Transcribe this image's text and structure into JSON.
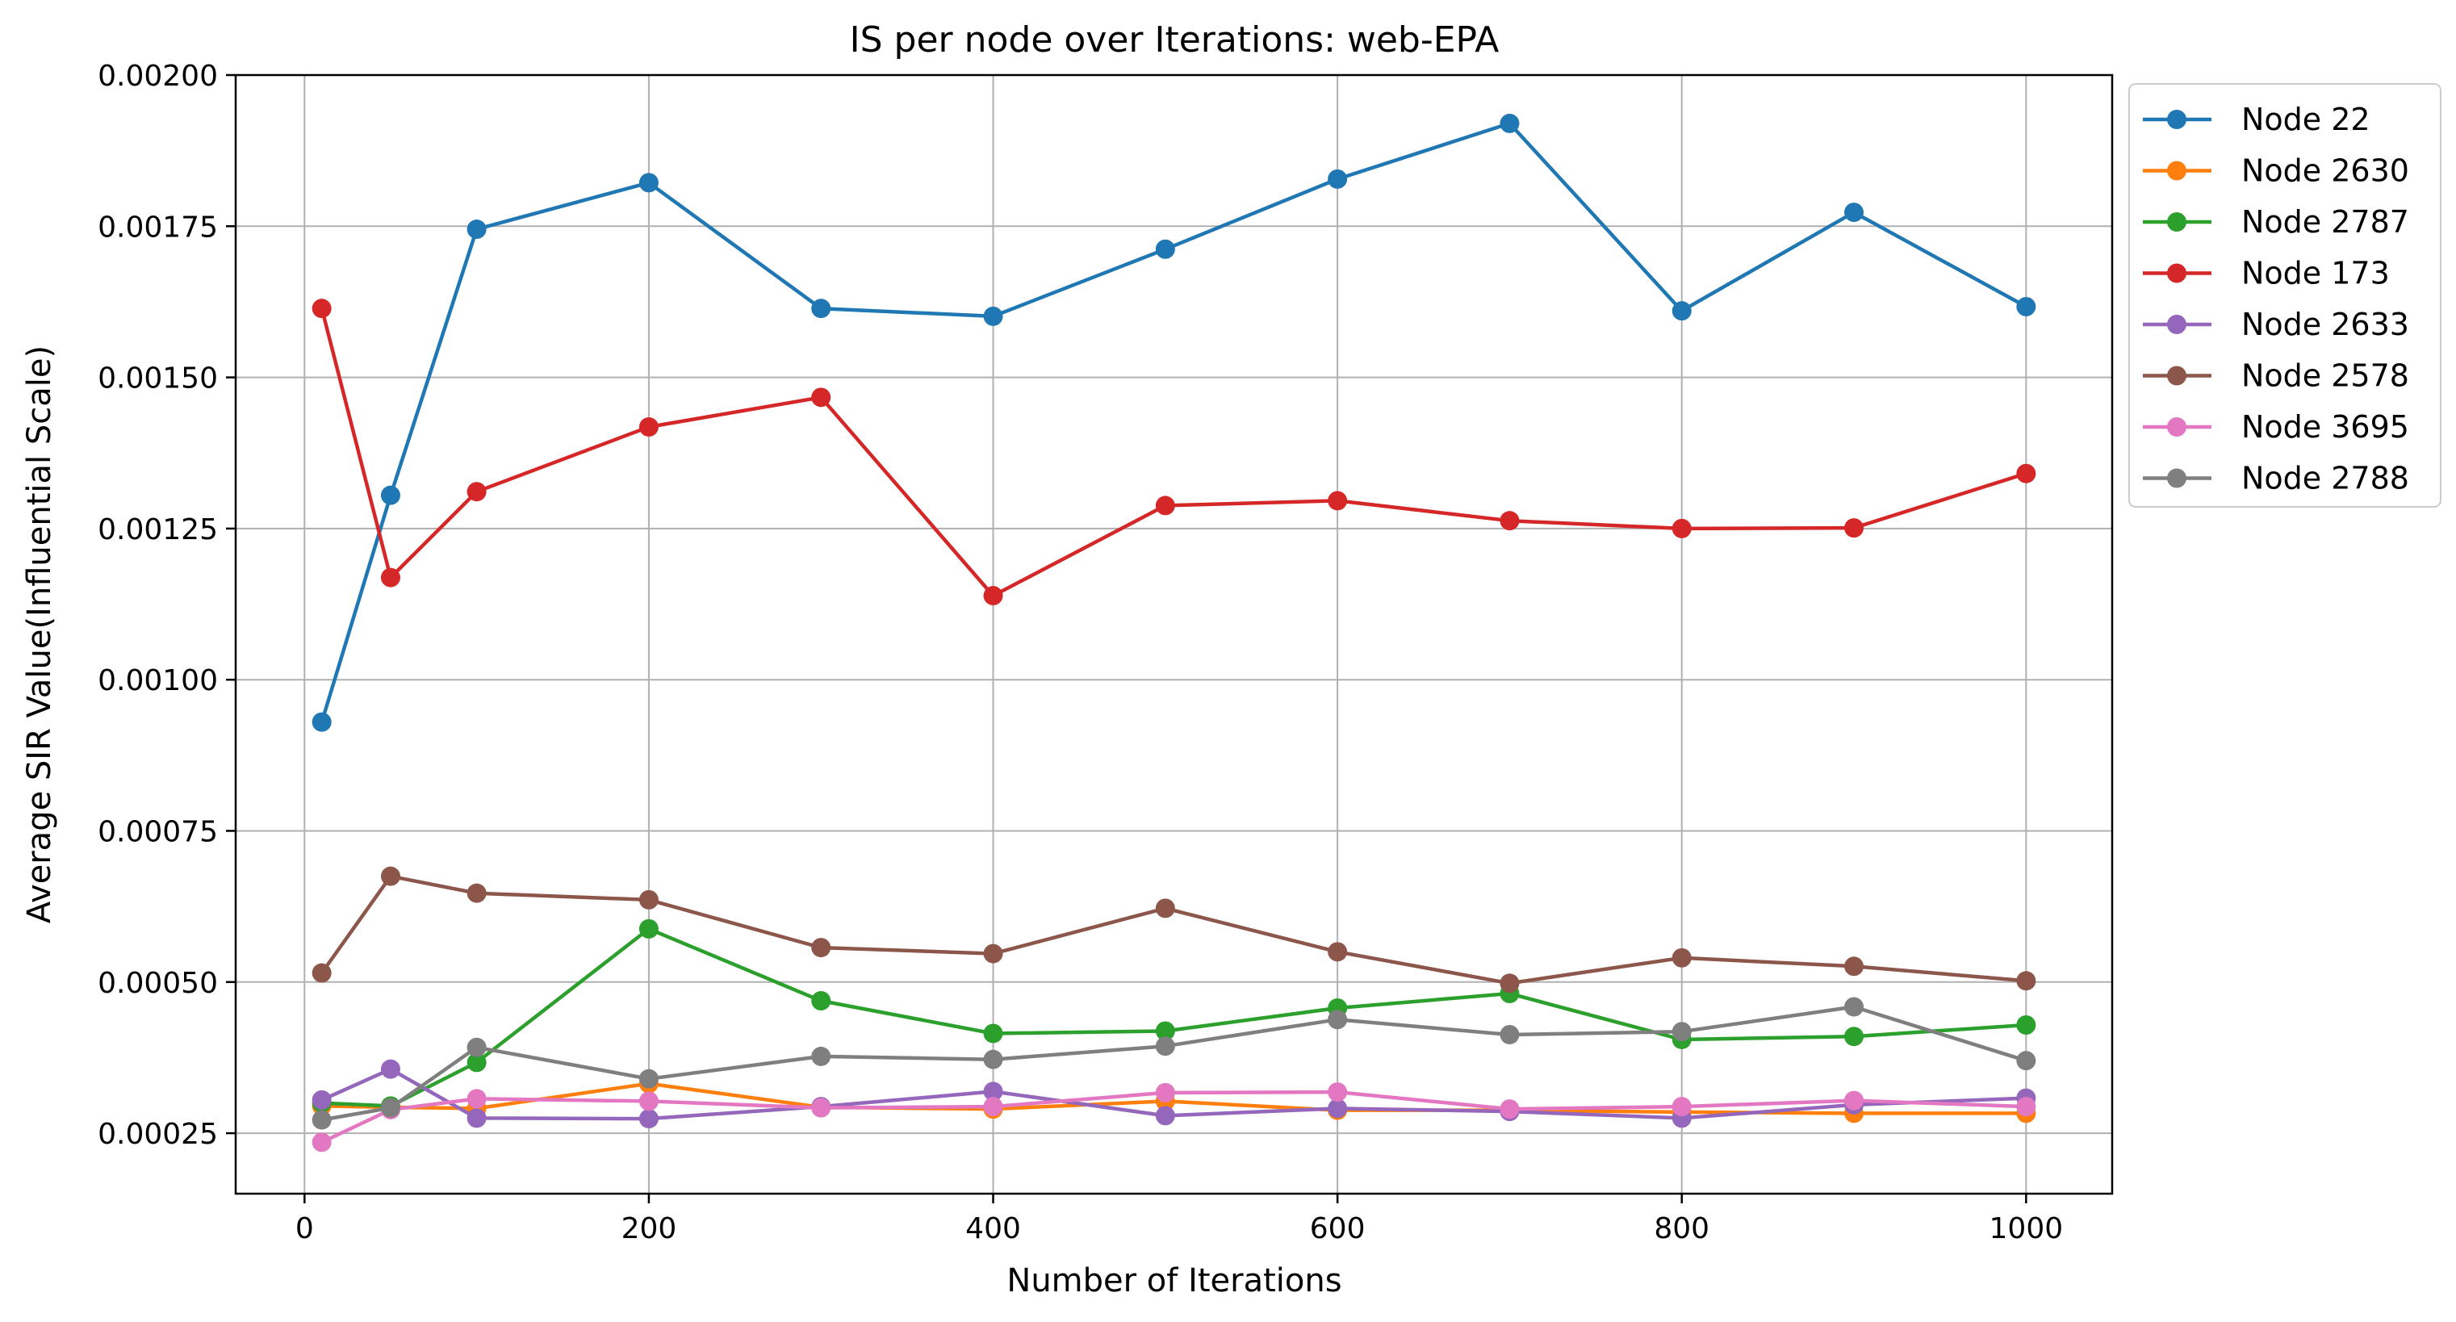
{
  "chart_data": {
    "type": "line",
    "title": "IS per node over Iterations: web-EPA",
    "xlabel": "Number of Iterations",
    "ylabel": "Average SIR Value(Influential Scale)",
    "xlim": [
      -40,
      1050
    ],
    "ylim": [
      0.00015,
      0.002
    ],
    "xticks": [
      0,
      200,
      400,
      600,
      800,
      1000
    ],
    "yticks": [
      0.00025,
      0.0005,
      0.00075,
      0.001,
      0.00125,
      0.0015,
      0.00175,
      0.002
    ],
    "ytick_labels": [
      "0.00025",
      "0.00050",
      "0.00075",
      "0.00100",
      "0.00125",
      "0.00150",
      "0.00175",
      "0.00200"
    ],
    "grid": true,
    "legend_position": "outside top-right",
    "x": [
      10,
      50,
      100,
      200,
      300,
      400,
      500,
      600,
      700,
      800,
      900,
      1000
    ],
    "series": [
      {
        "name": "Node 22",
        "color": "#1f77b4",
        "values": [
          0.00093,
          0.001305,
          0.001745,
          0.001822,
          0.001614,
          0.001601,
          0.001712,
          0.001828,
          0.00192,
          0.00161,
          0.001773,
          0.001617
        ]
      },
      {
        "name": "Node 2630",
        "color": "#ff7f0e",
        "values": [
          0.000295,
          0.000293,
          0.000291,
          0.000332,
          0.000293,
          0.00029,
          0.000303,
          0.000288,
          0.000288,
          0.000285,
          0.000283,
          0.000283
        ]
      },
      {
        "name": "Node 2787",
        "color": "#2ca02c",
        "values": [
          0.0003,
          0.000295,
          0.000367,
          0.000588,
          0.000469,
          0.000415,
          0.000419,
          0.000457,
          0.000481,
          0.000405,
          0.00041,
          0.000429
        ]
      },
      {
        "name": "Node 173",
        "color": "#d62728",
        "values": [
          0.001614,
          0.001169,
          0.001311,
          0.001418,
          0.001467,
          0.001139,
          0.001288,
          0.001296,
          0.001263,
          0.00125,
          0.001251,
          0.001341
        ]
      },
      {
        "name": "Node 2633",
        "color": "#9467bd",
        "values": [
          0.000305,
          0.000356,
          0.000275,
          0.000274,
          0.000294,
          0.000319,
          0.000279,
          0.000291,
          0.000286,
          0.000275,
          0.000297,
          0.000308
        ]
      },
      {
        "name": "Node 2578",
        "color": "#8c564b",
        "values": [
          0.000515,
          0.000675,
          0.000647,
          0.000636,
          0.000557,
          0.000547,
          0.000622,
          0.00055,
          0.000498,
          0.00054,
          0.000526,
          0.000502
        ]
      },
      {
        "name": "Node 3695",
        "color": "#e377c2",
        "values": [
          0.000235,
          0.000289,
          0.000307,
          0.000303,
          0.000292,
          0.000294,
          0.000317,
          0.000318,
          0.00029,
          0.000294,
          0.000304,
          0.000294
        ]
      },
      {
        "name": "Node 2788",
        "color": "#7f7f7f",
        "values": [
          0.000272,
          0.000292,
          0.000392,
          0.00034,
          0.000377,
          0.000372,
          0.000394,
          0.000438,
          0.000413,
          0.000418,
          0.000459,
          0.00037
        ]
      }
    ]
  }
}
